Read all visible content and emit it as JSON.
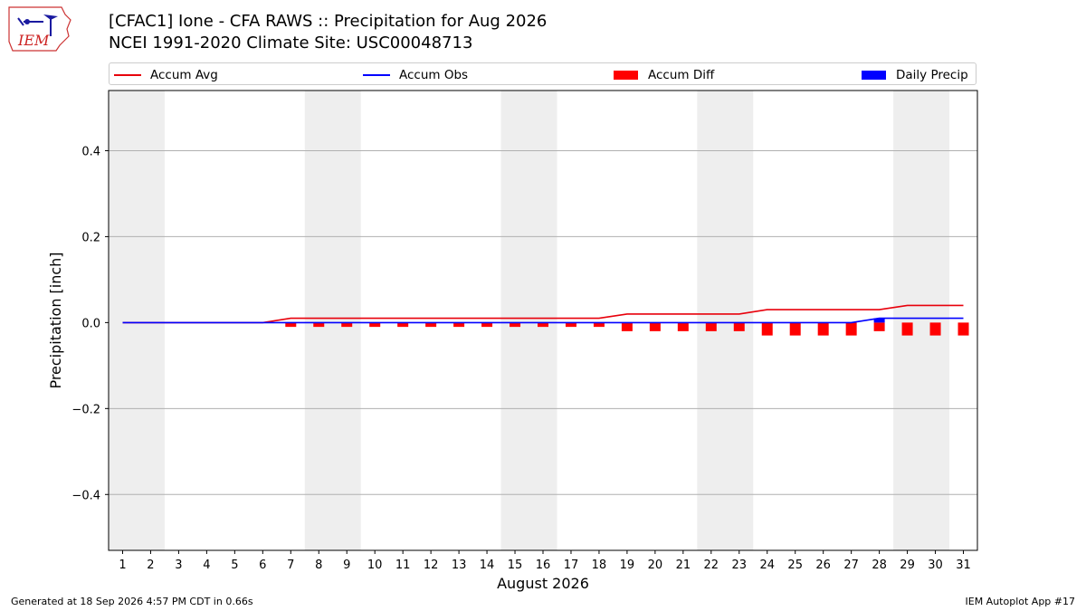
{
  "logo": {
    "text": "IEM"
  },
  "title": {
    "line1": "[CFAC1] Ione - CFA RAWS :: Precipitation for Aug 2026",
    "line2": "NCEI 1991-2020 Climate Site: USC00048713"
  },
  "legend": {
    "items": [
      {
        "label": "Accum Avg",
        "kind": "line",
        "color": "#e8000b"
      },
      {
        "label": "Accum Obs",
        "kind": "line",
        "color": "#0000ff"
      },
      {
        "label": "Accum Diff",
        "kind": "bar",
        "color": "#ff0000"
      },
      {
        "label": "Daily Precip",
        "kind": "bar",
        "color": "#0000ff"
      }
    ]
  },
  "footer": {
    "left": "Generated at 18 Sep 2026 4:57 PM CDT in 0.66s",
    "right": "IEM Autoplot App #17"
  },
  "chart_data": {
    "type": "bar",
    "xlabel": "August 2026",
    "ylabel": "Precipitation [inch]",
    "x": [
      1,
      2,
      3,
      4,
      5,
      6,
      7,
      8,
      9,
      10,
      11,
      12,
      13,
      14,
      15,
      16,
      17,
      18,
      19,
      20,
      21,
      22,
      23,
      24,
      25,
      26,
      27,
      28,
      29,
      30,
      31
    ],
    "xlim": [
      0.5,
      31.5
    ],
    "ylim": [
      -0.53,
      0.54
    ],
    "yticks": [
      -0.4,
      -0.2,
      0.0,
      0.2,
      0.4
    ],
    "ytick_labels": [
      "−0.4",
      "−0.2",
      "0.0",
      "0.2",
      "0.4"
    ],
    "grid": "horizontal",
    "legend_position": "top",
    "weekend_shading": [
      [
        0.5,
        2.5
      ],
      [
        7.5,
        9.5
      ],
      [
        14.5,
        16.5
      ],
      [
        21.5,
        23.5
      ],
      [
        28.5,
        30.5
      ]
    ],
    "colors": {
      "avg": "#e8000b",
      "obs": "#0000ff",
      "diff": "#ff0000",
      "daily": "#0000ff",
      "shade": "#eeeeee",
      "grid": "#b0b0b0"
    },
    "series": [
      {
        "name": "Accum Avg",
        "kind": "line",
        "values": [
          0,
          0,
          0,
          0,
          0,
          0,
          0.01,
          0.01,
          0.01,
          0.01,
          0.01,
          0.01,
          0.01,
          0.01,
          0.01,
          0.01,
          0.01,
          0.01,
          0.02,
          0.02,
          0.02,
          0.02,
          0.02,
          0.03,
          0.03,
          0.03,
          0.03,
          0.03,
          0.04,
          0.04,
          0.04
        ]
      },
      {
        "name": "Accum Obs",
        "kind": "line",
        "values": [
          0,
          0,
          0,
          0,
          0,
          0,
          0,
          0,
          0,
          0,
          0,
          0,
          0,
          0,
          0,
          0,
          0,
          0,
          0,
          0,
          0,
          0,
          0,
          0,
          0,
          0,
          0,
          0.01,
          0.01,
          0.01,
          0.01
        ]
      },
      {
        "name": "Accum Diff",
        "kind": "bar",
        "values": [
          0,
          0,
          0,
          0,
          0,
          0,
          -0.01,
          -0.01,
          -0.01,
          -0.01,
          -0.01,
          -0.01,
          -0.01,
          -0.01,
          -0.01,
          -0.01,
          -0.01,
          -0.01,
          -0.02,
          -0.02,
          -0.02,
          -0.02,
          -0.02,
          -0.03,
          -0.03,
          -0.03,
          -0.03,
          -0.02,
          -0.03,
          -0.03,
          -0.03
        ]
      },
      {
        "name": "Daily Precip",
        "kind": "bar",
        "values": [
          0,
          0,
          0,
          0,
          0,
          0,
          0,
          0,
          0,
          0,
          0,
          0,
          0,
          0,
          0,
          0,
          0,
          0,
          0,
          0,
          0,
          0,
          0,
          0,
          0,
          0,
          0,
          0.01,
          0,
          0,
          0
        ]
      }
    ]
  }
}
